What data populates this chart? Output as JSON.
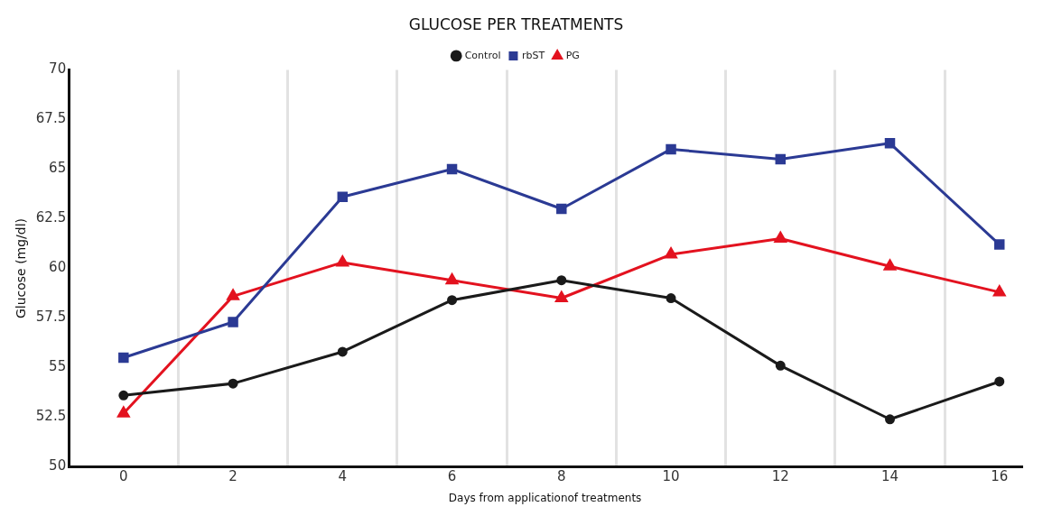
{
  "chart_data": {
    "type": "line",
    "title": "GLUCOSE PER TREATMENTS",
    "xlabel": "Days from applicationof treatments",
    "ylabel": "Glucose (mg/dl)",
    "x": [
      0,
      2,
      4,
      6,
      8,
      10,
      12,
      14,
      16
    ],
    "series": [
      {
        "name": "Control",
        "color": "#1a1a1a",
        "marker": "circle",
        "values": [
          53.6,
          54.2,
          55.8,
          58.4,
          59.4,
          58.5,
          55.1,
          52.4,
          54.3
        ]
      },
      {
        "name": "rbST",
        "color": "#2b3a94",
        "marker": "square",
        "values": [
          55.5,
          57.3,
          63.6,
          65.0,
          63.0,
          66.0,
          65.5,
          66.3,
          61.2
        ]
      },
      {
        "name": "PG",
        "color": "#e3121f",
        "marker": "triangle",
        "values": [
          52.7,
          58.6,
          60.3,
          59.4,
          58.5,
          60.7,
          61.5,
          60.1,
          58.8
        ]
      }
    ],
    "xlim": [
      -1,
      16.4
    ],
    "xticks": [
      0,
      {
        "value": 1,
        "label": null
      },
      2,
      {
        "value": 3,
        "label": null
      },
      4,
      {
        "value": 5,
        "label": null
      },
      6,
      {
        "value": 7,
        "label": null
      },
      8,
      {
        "value": 9,
        "label": null
      },
      10,
      {
        "value": 11,
        "label": null
      },
      12,
      {
        "value": 13,
        "label": null
      },
      14,
      {
        "value": 15,
        "label": null
      },
      16
    ],
    "ylim": [
      50,
      70
    ],
    "yticks": [
      50,
      52.5,
      55,
      57.5,
      60,
      62.5,
      65,
      67.5,
      70
    ],
    "grid": "x",
    "legend": "top",
    "line_style": "solid"
  }
}
